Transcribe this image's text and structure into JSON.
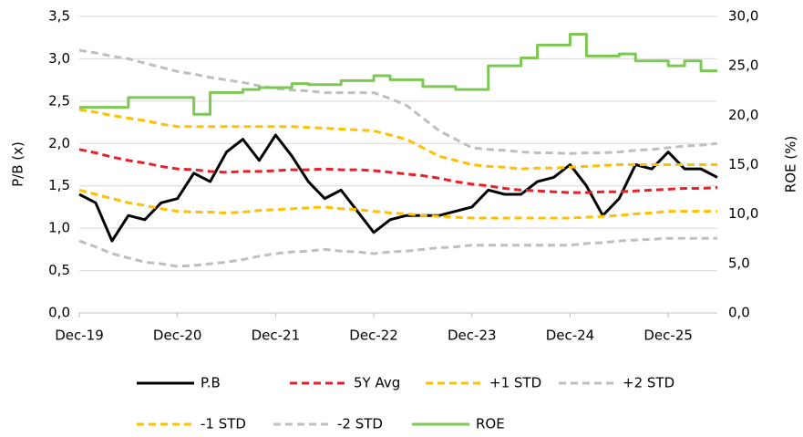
{
  "chart_data": {
    "type": "line",
    "x": [
      0,
      2,
      4,
      6,
      8,
      10,
      12,
      14,
      16,
      18,
      20,
      22,
      24,
      26,
      28,
      30,
      32,
      34,
      36,
      38,
      40,
      42,
      44,
      46,
      48,
      50,
      52,
      54,
      56,
      58,
      60,
      62,
      64,
      66,
      68,
      70,
      72,
      74,
      76,
      78
    ],
    "xlim": [
      0,
      78
    ],
    "xticks": [
      {
        "value": 0,
        "label": "Dec-19"
      },
      {
        "value": 12,
        "label": "Dec-20"
      },
      {
        "value": 24,
        "label": "Dec-21"
      },
      {
        "value": 36,
        "label": "Dec-22"
      },
      {
        "value": 48,
        "label": "Dec-23"
      },
      {
        "value": 60,
        "label": "Dec-24"
      },
      {
        "value": 72,
        "label": "Dec-25"
      }
    ],
    "ylabel": "P/B (x)",
    "y2label": "ROE (%)",
    "ylim": [
      0,
      3.5
    ],
    "yticks": [
      {
        "value": 0,
        "label": "0,0"
      },
      {
        "value": 0.5,
        "label": "0,5"
      },
      {
        "value": 1,
        "label": "1,0"
      },
      {
        "value": 1.5,
        "label": "1,5"
      },
      {
        "value": 2,
        "label": "2,0"
      },
      {
        "value": 2.5,
        "label": "2,5"
      },
      {
        "value": 3,
        "label": "3,0"
      },
      {
        "value": 3.5,
        "label": "3,5"
      }
    ],
    "y2lim": [
      0,
      30
    ],
    "y2ticks": [
      {
        "value": 0,
        "label": "0,0"
      },
      {
        "value": 5,
        "label": "5,0"
      },
      {
        "value": 10,
        "label": "10,0"
      },
      {
        "value": 15,
        "label": "15,0"
      },
      {
        "value": 20,
        "label": "20,0"
      },
      {
        "value": 25,
        "label": "25,0"
      },
      {
        "value": 30,
        "label": "30,0"
      }
    ],
    "grid": true,
    "legend": "bottom",
    "series": [
      {
        "name": "P.B",
        "color": "#000000",
        "values": [
          1.4,
          1.3,
          0.85,
          1.15,
          1.1,
          1.3,
          1.35,
          1.65,
          1.55,
          1.9,
          2.05,
          1.8,
          2.1,
          1.85,
          1.55,
          1.35,
          1.45,
          1.2,
          0.95,
          1.1,
          1.15,
          1.15,
          1.15,
          1.2,
          1.25,
          1.45,
          1.4,
          1.4,
          1.55,
          1.6,
          1.75,
          1.5,
          1.15,
          1.35,
          1.75,
          1.7,
          1.9,
          1.7,
          1.7,
          1.6
        ]
      },
      {
        "name": "5Y Avg",
        "color": "#e8202a",
        "dashed": true,
        "values": [
          1.93,
          1.89,
          1.84,
          1.8,
          1.77,
          1.73,
          1.7,
          1.69,
          1.67,
          1.66,
          1.67,
          1.67,
          1.68,
          1.69,
          1.69,
          1.7,
          1.69,
          1.69,
          1.68,
          1.66,
          1.64,
          1.62,
          1.59,
          1.55,
          1.52,
          1.5,
          1.47,
          1.45,
          1.44,
          1.43,
          1.42,
          1.42,
          1.43,
          1.43,
          1.44,
          1.45,
          1.46,
          1.47,
          1.47,
          1.48
        ]
      },
      {
        "name": "+1 STD",
        "color": "#ffc000",
        "dashed": true,
        "values": [
          2.4,
          2.37,
          2.33,
          2.3,
          2.27,
          2.23,
          2.2,
          2.2,
          2.2,
          2.2,
          2.2,
          2.2,
          2.2,
          2.2,
          2.19,
          2.18,
          2.17,
          2.16,
          2.15,
          2.1,
          2.05,
          1.95,
          1.85,
          1.8,
          1.75,
          1.73,
          1.72,
          1.7,
          1.71,
          1.71,
          1.72,
          1.73,
          1.74,
          1.75,
          1.75,
          1.75,
          1.75,
          1.75,
          1.75,
          1.75
        ]
      },
      {
        "name": "+2 STD",
        "color": "#bfbfbf",
        "dashed": true,
        "values": [
          3.1,
          3.07,
          3.03,
          3.0,
          2.95,
          2.9,
          2.85,
          2.82,
          2.78,
          2.75,
          2.72,
          2.68,
          2.65,
          2.63,
          2.62,
          2.6,
          2.6,
          2.6,
          2.6,
          2.53,
          2.45,
          2.3,
          2.15,
          2.05,
          1.95,
          1.93,
          1.92,
          1.9,
          1.89,
          1.89,
          1.88,
          1.89,
          1.89,
          1.9,
          1.92,
          1.93,
          1.95,
          1.97,
          1.98,
          2.0
        ]
      },
      {
        "name": "-1 STD",
        "color": "#ffc000",
        "dashed": true,
        "values": [
          1.45,
          1.4,
          1.35,
          1.3,
          1.27,
          1.23,
          1.2,
          1.19,
          1.19,
          1.18,
          1.19,
          1.21,
          1.22,
          1.23,
          1.24,
          1.25,
          1.23,
          1.22,
          1.2,
          1.18,
          1.17,
          1.15,
          1.14,
          1.13,
          1.12,
          1.12,
          1.12,
          1.12,
          1.12,
          1.12,
          1.12,
          1.13,
          1.14,
          1.15,
          1.17,
          1.18,
          1.2,
          1.2,
          1.2,
          1.2
        ]
      },
      {
        "name": "-2 STD",
        "color": "#bfbfbf",
        "dashed": true,
        "values": [
          0.85,
          0.78,
          0.7,
          0.65,
          0.6,
          0.58,
          0.55,
          0.56,
          0.58,
          0.6,
          0.63,
          0.67,
          0.7,
          0.72,
          0.73,
          0.75,
          0.73,
          0.72,
          0.7,
          0.72,
          0.73,
          0.75,
          0.77,
          0.78,
          0.8,
          0.8,
          0.8,
          0.8,
          0.8,
          0.8,
          0.8,
          0.82,
          0.83,
          0.85,
          0.86,
          0.87,
          0.88,
          0.88,
          0.88,
          0.88
        ]
      },
      {
        "name": "ROE",
        "color": "#7dc855",
        "axis": "y2",
        "step": true,
        "values": [
          20.8,
          20.8,
          20.8,
          21.8,
          21.8,
          21.8,
          21.8,
          20.1,
          22.3,
          22.3,
          22.6,
          22.8,
          22.8,
          23.2,
          23.1,
          23.1,
          23.5,
          23.5,
          24,
          23.6,
          23.6,
          22.9,
          22.9,
          22.6,
          22.6,
          25,
          25,
          25.8,
          27.1,
          27.1,
          28.2,
          26,
          26,
          26.2,
          25.5,
          25.5,
          25,
          25.5,
          24.5,
          24.5
        ]
      }
    ]
  }
}
